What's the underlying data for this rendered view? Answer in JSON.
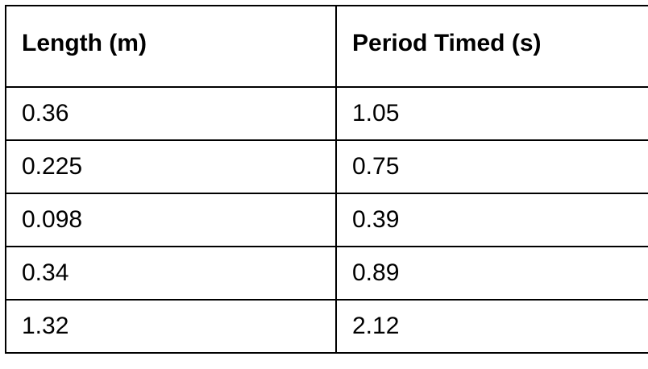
{
  "table": {
    "headers": [
      "Length (m)",
      "Period Timed (s)"
    ],
    "rows": [
      [
        "0.36",
        "1.05"
      ],
      [
        "0.225",
        "0.75"
      ],
      [
        "0.098",
        "0.39"
      ],
      [
        "0.34",
        "0.89"
      ],
      [
        "1.32",
        "2.12"
      ]
    ]
  }
}
